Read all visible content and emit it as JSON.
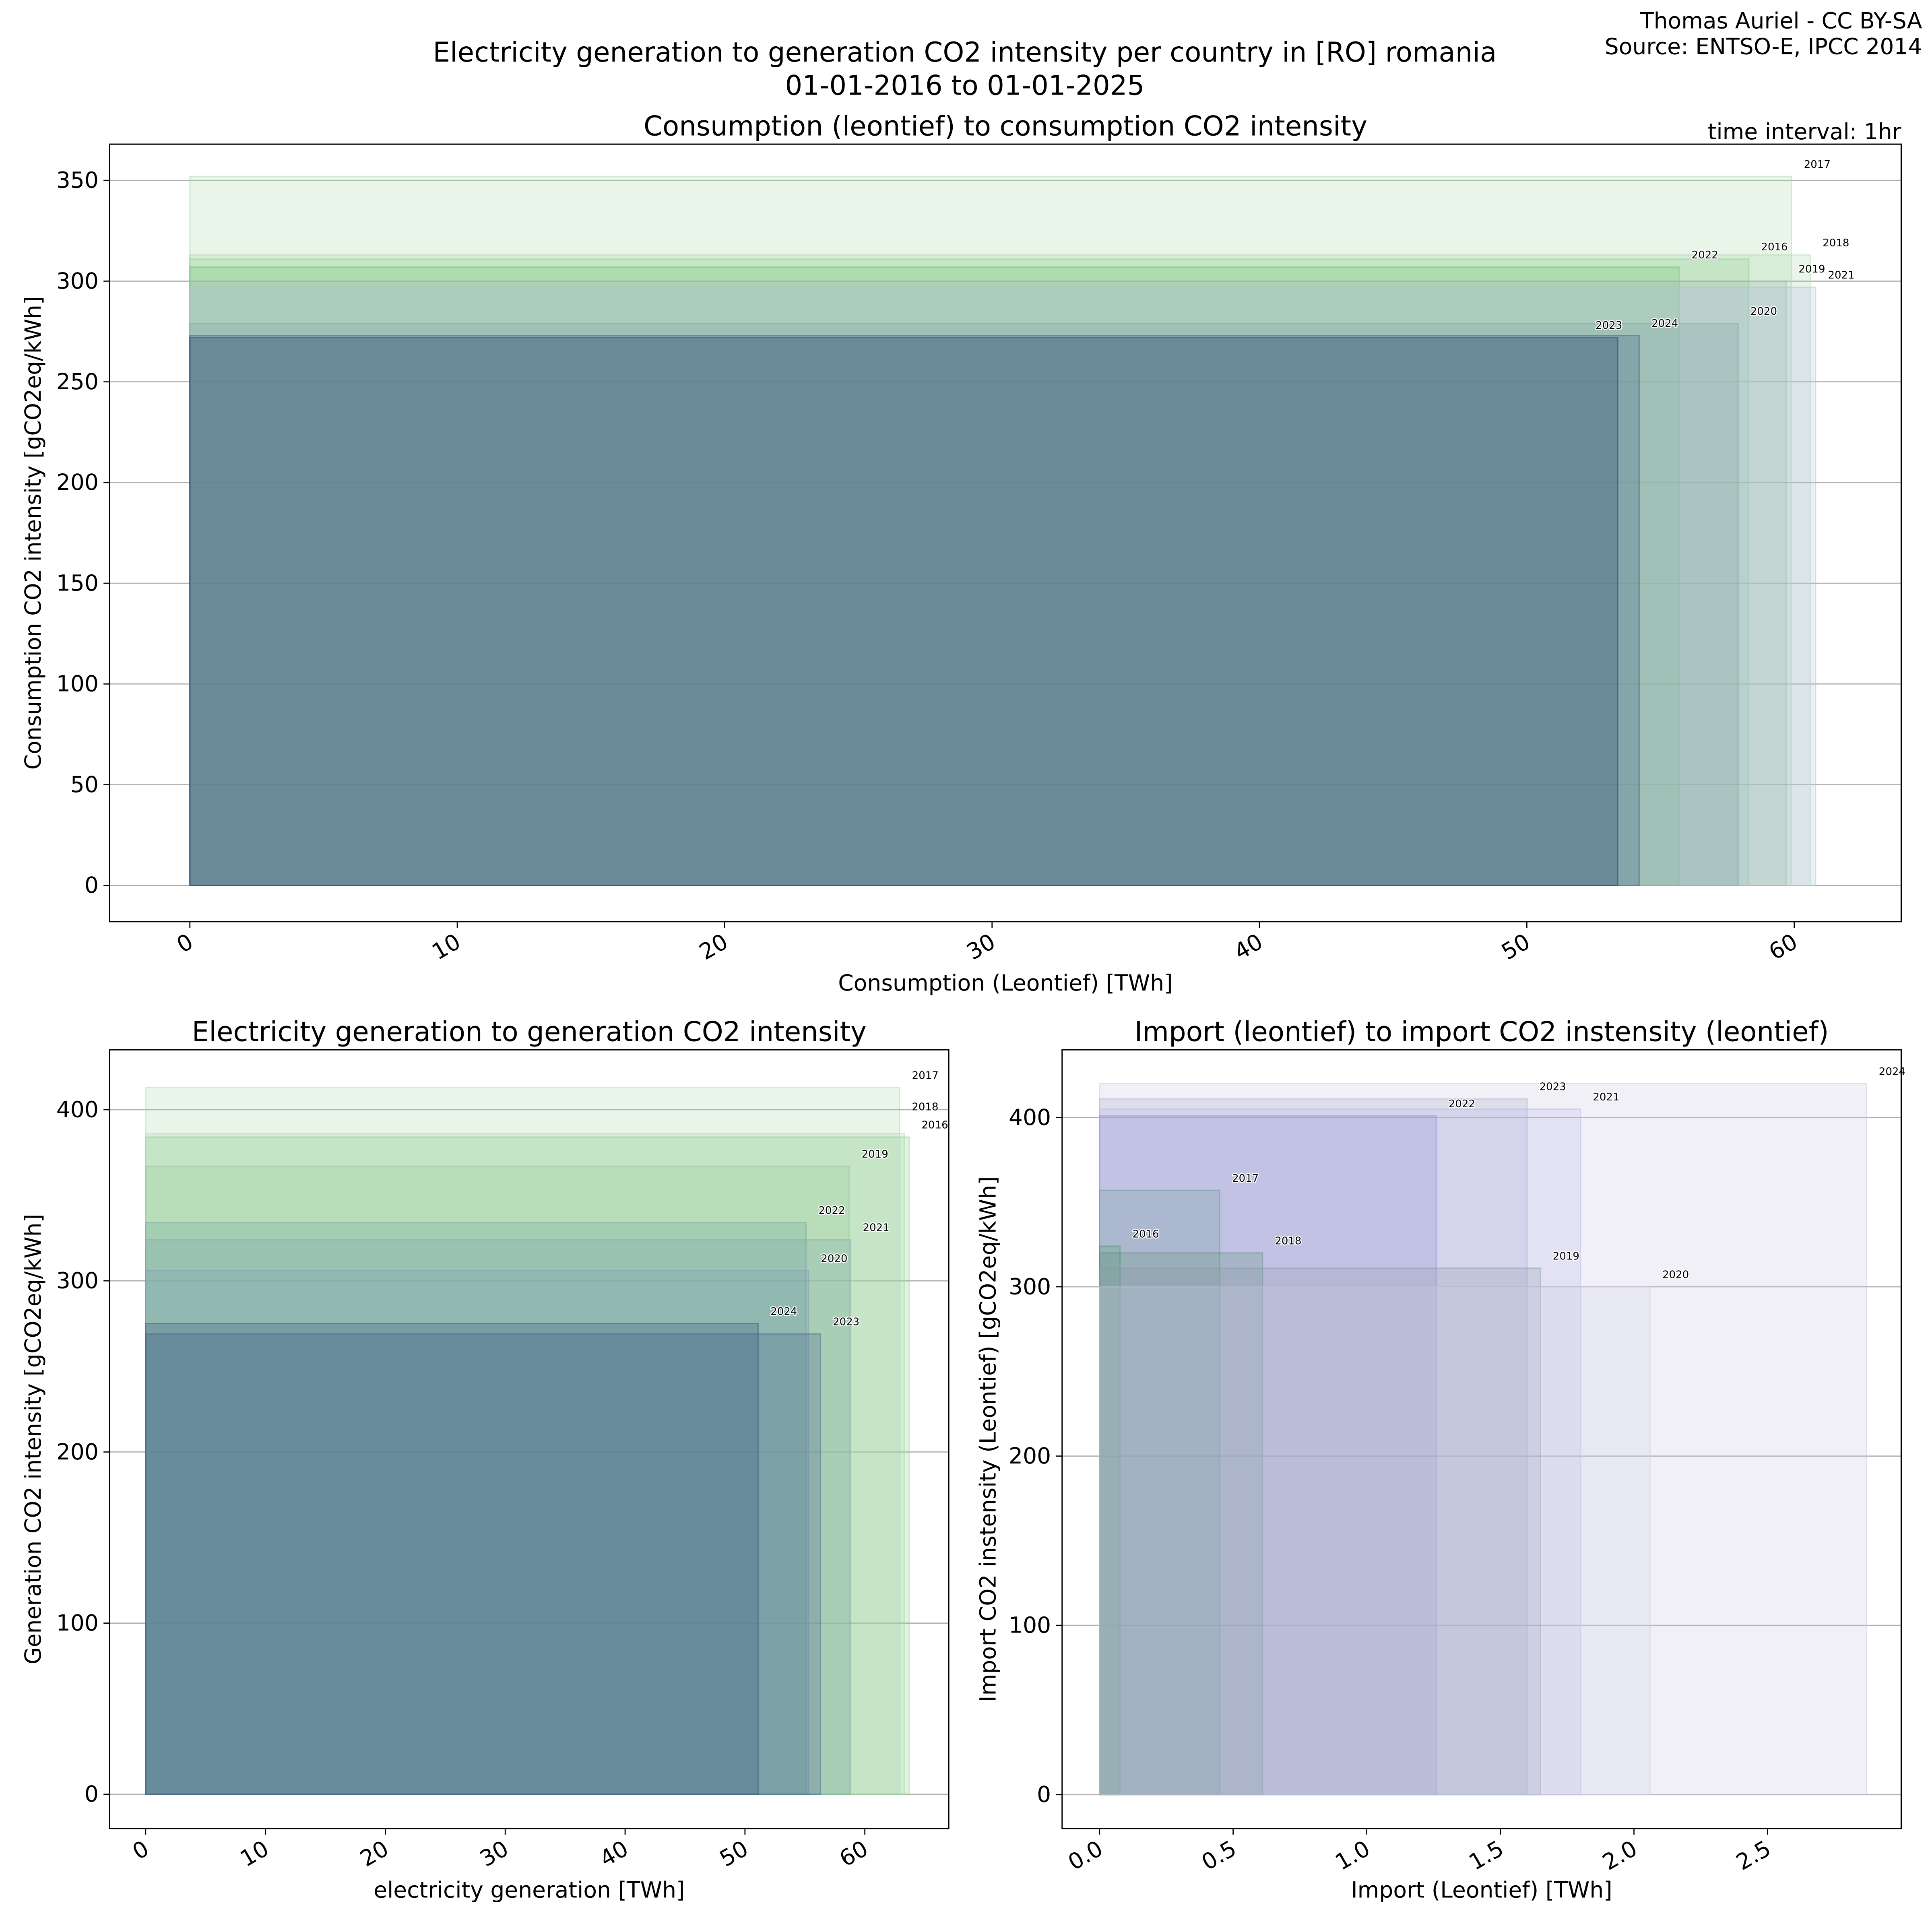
{
  "header": {
    "title": "Electricity generation to generation CO2 intensity per country in [RO] romania",
    "date_range": "01-01-2016 to 01-01-2025",
    "credit": "Thomas Auriel - CC BY-SA",
    "source": "Source: ENTSO-E, IPCC 2014",
    "time_interval": "time interval: 1hr"
  },
  "chart_data": [
    {
      "type": "bar",
      "title": "Consumption (leontief) to consumption CO2 intensity",
      "xlabel": "Consumption (Leontief) [TWh]",
      "ylabel": "Consumption CO2 intensity [gCO2eq/kWh]",
      "xlim": [
        -3,
        64
      ],
      "ylim": [
        -18,
        368
      ],
      "xticks": [
        0,
        10,
        20,
        30,
        40,
        50,
        60
      ],
      "yticks": [
        0,
        50,
        100,
        150,
        200,
        250,
        300,
        350
      ],
      "grid": "horizontal",
      "rects": [
        {
          "label": "2017",
          "x": 59.9,
          "y": 352,
          "color": "#a8d8a8"
        },
        {
          "label": "2018",
          "x": 60.6,
          "y": 313,
          "color": "#a8d8a8"
        },
        {
          "label": "2016",
          "x": 58.3,
          "y": 311,
          "color": "#8fd08f"
        },
        {
          "label": "2022",
          "x": 55.7,
          "y": 307,
          "color": "#6cbf70"
        },
        {
          "label": "2019",
          "x": 59.7,
          "y": 300,
          "color": "#9ab8b0"
        },
        {
          "label": "2021",
          "x": 60.8,
          "y": 297,
          "color": "#b4bce8"
        },
        {
          "label": "2020",
          "x": 57.9,
          "y": 279,
          "color": "#7f9fa8"
        },
        {
          "label": "2024",
          "x": 54.2,
          "y": 273,
          "color": "#2e5878"
        },
        {
          "label": "2023",
          "x": 53.4,
          "y": 272,
          "color": "#1f3a66"
        }
      ]
    },
    {
      "type": "bar",
      "title": "Electricity generation to generation CO2 intensity",
      "xlabel": "electricity generation [TWh]",
      "ylabel": "Generation CO2 intensity [gCO2eq/kWh]",
      "xlim": [
        -3,
        67
      ],
      "ylim": [
        -20,
        435
      ],
      "xticks": [
        0,
        10,
        20,
        30,
        40,
        50,
        60
      ],
      "yticks": [
        0,
        100,
        200,
        300,
        400
      ],
      "grid": "horizontal",
      "rects": [
        {
          "label": "2017",
          "x": 62.9,
          "y": 413,
          "color": "#a8d8a8"
        },
        {
          "label": "2018",
          "x": 63.3,
          "y": 386,
          "color": "#a8d8a8"
        },
        {
          "label": "2016",
          "x": 63.7,
          "y": 384,
          "color": "#8fd08f"
        },
        {
          "label": "2019",
          "x": 58.7,
          "y": 367,
          "color": "#8fc88f"
        },
        {
          "label": "2022",
          "x": 55.1,
          "y": 334,
          "color": "#6c9fa0"
        },
        {
          "label": "2021",
          "x": 58.8,
          "y": 324,
          "color": "#7aa4b0"
        },
        {
          "label": "2020",
          "x": 55.3,
          "y": 306,
          "color": "#7a9ab8"
        },
        {
          "label": "2024",
          "x": 51.1,
          "y": 275,
          "color": "#2e4a78"
        },
        {
          "label": "2023",
          "x": 56.3,
          "y": 269,
          "color": "#3a5a88"
        }
      ]
    },
    {
      "type": "bar",
      "title": "Import (leontief) to import CO2 instensity (leontief)",
      "xlabel": "Import (Leontief) [TWh]",
      "ylabel": "Import CO2 instensity (Leontief) [gCO2eq/kWh]",
      "xlim": [
        -0.14,
        3.0
      ],
      "ylim": [
        -20,
        440
      ],
      "xticks": [
        0.0,
        0.5,
        1.0,
        1.5,
        2.0,
        2.5
      ],
      "yticks": [
        0,
        100,
        200,
        300,
        400
      ],
      "grid": "horizontal",
      "rects": [
        {
          "label": "2024",
          "x": 2.87,
          "y": 420,
          "color": "#c4c4dc"
        },
        {
          "label": "2023",
          "x": 1.6,
          "y": 411,
          "color": "#a8a8cc"
        },
        {
          "label": "2021",
          "x": 1.8,
          "y": 405,
          "color": "#b8b8ec"
        },
        {
          "label": "2022",
          "x": 1.26,
          "y": 401,
          "color": "#8a8ad0"
        },
        {
          "label": "2017",
          "x": 0.45,
          "y": 357,
          "color": "#6a9a90"
        },
        {
          "label": "2016",
          "x": 0.077,
          "y": 324,
          "color": "#4a9a6a"
        },
        {
          "label": "2018",
          "x": 0.61,
          "y": 320,
          "color": "#5a9078"
        },
        {
          "label": "2019",
          "x": 1.65,
          "y": 311,
          "color": "#8a98a8"
        },
        {
          "label": "2020",
          "x": 2.06,
          "y": 300,
          "color": "#d0d0e8"
        }
      ]
    }
  ]
}
